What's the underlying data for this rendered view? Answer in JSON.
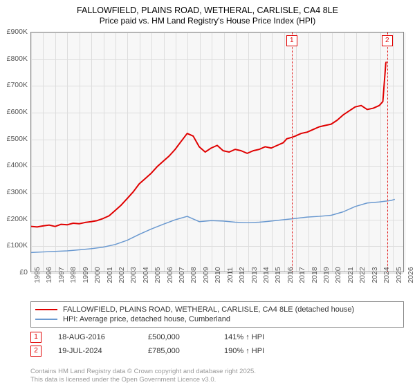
{
  "title": {
    "line1": "FALLOWFIELD, PLAINS ROAD, WETHERAL, CARLISLE, CA4 8LE",
    "line2": "Price paid vs. HM Land Registry's House Price Index (HPI)",
    "fontsize1": 12.5,
    "fontsize2": 12,
    "color": "#000000"
  },
  "chart": {
    "background_color": "#f7f7f7",
    "grid_color": "#dddddd",
    "border_color": "#888888",
    "x": {
      "min": 1995,
      "max": 2026,
      "ticks": [
        1995,
        1996,
        1997,
        1998,
        1999,
        2000,
        2001,
        2002,
        2003,
        2004,
        2005,
        2006,
        2007,
        2008,
        2009,
        2010,
        2011,
        2012,
        2013,
        2014,
        2015,
        2016,
        2017,
        2018,
        2019,
        2020,
        2021,
        2022,
        2023,
        2024,
        2025,
        2026
      ],
      "label_fontsize": 10.5
    },
    "y": {
      "min": 0,
      "max": 900,
      "ticks": [
        0,
        100,
        200,
        300,
        400,
        500,
        600,
        700,
        800,
        900
      ],
      "tick_labels": [
        "£0",
        "£100K",
        "£200K",
        "£300K",
        "£400K",
        "£500K",
        "£600K",
        "£700K",
        "£800K",
        "£900K"
      ],
      "label_fontsize": 10.5
    },
    "series": [
      {
        "id": "price_paid",
        "label": "FALLOWFIELD, PLAINS ROAD, WETHERAL, CARLISLE, CA4 8LE (detached house)",
        "color": "#e00000",
        "line_width": 2,
        "x": [
          1995,
          1995.5,
          1996,
          1996.5,
          1997,
          1997.5,
          1998,
          1998.5,
          1999,
          1999.5,
          2000,
          2000.5,
          2001,
          2001.5,
          2002,
          2002.5,
          2003,
          2003.5,
          2004,
          2004.5,
          2005,
          2005.5,
          2006,
          2006.5,
          2007,
          2007.5,
          2008,
          2008.5,
          2009,
          2009.5,
          2010,
          2010.5,
          2011,
          2011.5,
          2012,
          2012.5,
          2013,
          2013.5,
          2014,
          2014.5,
          2015,
          2015.5,
          2016,
          2016.3,
          2016.7,
          2017,
          2017.5,
          2018,
          2018.5,
          2019,
          2019.5,
          2020,
          2020.5,
          2021,
          2021.5,
          2022,
          2022.5,
          2023,
          2023.5,
          2024,
          2024.3,
          2024.55,
          2024.6
        ],
        "y": [
          170,
          168,
          172,
          175,
          170,
          178,
          176,
          182,
          180,
          185,
          188,
          192,
          200,
          210,
          230,
          250,
          275,
          300,
          330,
          350,
          370,
          395,
          415,
          435,
          460,
          490,
          520,
          510,
          470,
          450,
          465,
          475,
          455,
          450,
          460,
          455,
          445,
          455,
          460,
          470,
          465,
          475,
          485,
          500,
          505,
          510,
          520,
          525,
          535,
          545,
          550,
          555,
          570,
          590,
          605,
          620,
          625,
          610,
          615,
          625,
          640,
          785,
          790
        ]
      },
      {
        "id": "hpi",
        "label": "HPI: Average price, detached house, Cumberland",
        "color": "#6a99d0",
        "line_width": 1.5,
        "x": [
          1995,
          1996,
          1997,
          1998,
          1999,
          2000,
          2001,
          2002,
          2003,
          2004,
          2005,
          2006,
          2007,
          2008,
          2009,
          2010,
          2011,
          2012,
          2013,
          2014,
          2015,
          2016,
          2017,
          2018,
          2019,
          2020,
          2021,
          2022,
          2023,
          2024,
          2025,
          2025.3
        ],
        "y": [
          72,
          74,
          76,
          78,
          82,
          86,
          92,
          102,
          118,
          140,
          160,
          178,
          195,
          208,
          188,
          192,
          190,
          186,
          184,
          186,
          190,
          195,
          200,
          205,
          208,
          212,
          225,
          245,
          258,
          262,
          268,
          272
        ]
      }
    ],
    "markers": [
      {
        "id": 1,
        "label": "1",
        "x": 2016.63,
        "color": "#e00000"
      },
      {
        "id": 2,
        "label": "2",
        "x": 2024.55,
        "color": "#e00000"
      }
    ]
  },
  "legend": {
    "items": [
      {
        "color": "#e00000",
        "width": 2,
        "label": "FALLOWFIELD, PLAINS ROAD, WETHERAL, CARLISLE, CA4 8LE (detached house)"
      },
      {
        "color": "#6a99d0",
        "width": 1.5,
        "label": "HPI: Average price, detached house, Cumberland"
      }
    ],
    "fontsize": 11,
    "border_color": "#888888"
  },
  "events": [
    {
      "marker": "1",
      "date": "18-AUG-2016",
      "price": "£500,000",
      "pct": "141% ↑ HPI"
    },
    {
      "marker": "2",
      "date": "19-JUL-2024",
      "price": "£785,000",
      "pct": "190% ↑ HPI"
    }
  ],
  "footer": {
    "line1": "Contains HM Land Registry data © Crown copyright and database right 2025.",
    "line2": "This data is licensed under the Open Government Licence v3.0.",
    "color": "#999999",
    "fontsize": 9.5
  }
}
